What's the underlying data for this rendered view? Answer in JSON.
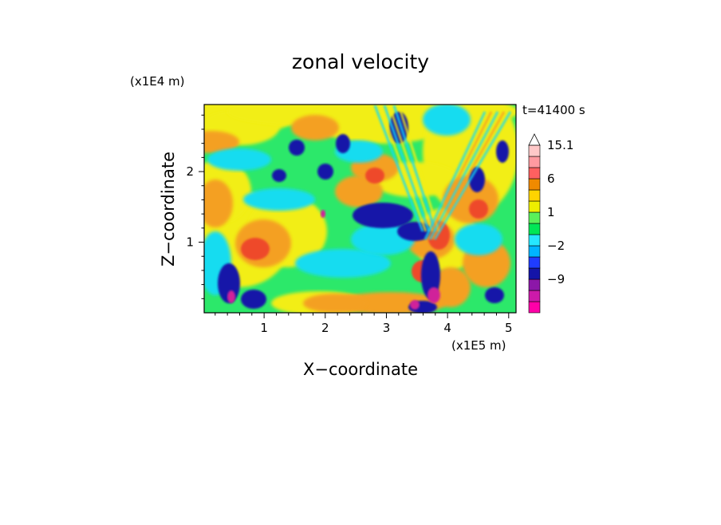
{
  "chart_data": {
    "type": "heatmap",
    "title": "zonal velocity",
    "xlabel": "X−coordinate",
    "ylabel": "Z−coordinate",
    "x_unit": "(x1E5 m)",
    "y_unit": "(x1E4 m)",
    "time_label": "t=41400 s",
    "xlim": [
      0.02,
      5.12
    ],
    "ylim": [
      0.0,
      2.95
    ],
    "x_ticks": [
      "1",
      "2",
      "3",
      "4",
      "5"
    ],
    "x_tick_values": [
      1,
      2,
      3,
      4,
      5
    ],
    "y_ticks": [
      "1",
      "2"
    ],
    "y_tick_values": [
      1,
      2
    ],
    "grid": false,
    "colorbar": {
      "labels": [
        "15.1",
        "6",
        "1",
        "−2",
        "−9"
      ],
      "label_values": [
        15.1,
        6,
        1,
        -2,
        -9
      ],
      "levels": [
        -15,
        -12,
        -9,
        -6,
        -3,
        -2,
        -1,
        0,
        1,
        2,
        3,
        6,
        9,
        12,
        15.1
      ],
      "colors": [
        "#ff00a8",
        "#cc1aaa",
        "#8c17a8",
        "#1414a8",
        "#1f3cff",
        "#00b4ff",
        "#25e7ff",
        "#00e656",
        "#5af05a",
        "#eeee00",
        "#ffd400",
        "#f08a00",
        "#ff6060",
        "#ff9aa0",
        "#ffc8c8",
        "#ffffff"
      ]
    },
    "field_summary": {
      "background": "#2ce86a",
      "features": [
        {
          "name": "yellow-orange upper band",
          "color": "#f2ee18"
        },
        {
          "name": "orange jets",
          "color": "#f4a020"
        },
        {
          "name": "cyan ribbons",
          "color": "#19dcf0"
        },
        {
          "name": "blue cores",
          "color": "#1414a8"
        },
        {
          "name": "red cores",
          "color": "#ee4a2c"
        },
        {
          "name": "magenta spots",
          "color": "#d0209a"
        }
      ]
    }
  }
}
